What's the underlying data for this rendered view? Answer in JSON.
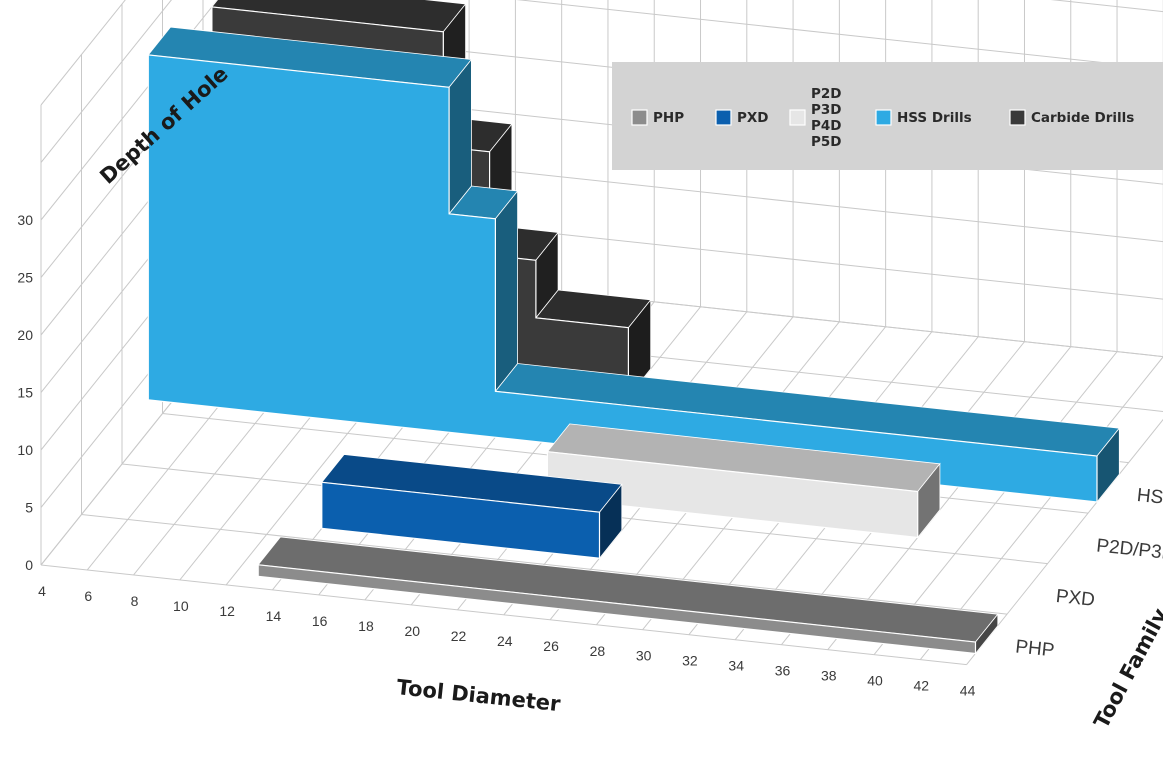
{
  "chart_data": {
    "type": "bar",
    "variant": "3d-stepped",
    "xlabel": "Tool Diameter",
    "ylabel": "Depth of Hole",
    "zlabel": "Tool Family",
    "x_ticks": [
      "4",
      "6",
      "8",
      "10",
      "12",
      "14",
      "16",
      "18",
      "20",
      "22",
      "24",
      "26",
      "28",
      "30",
      "32",
      "34",
      "36",
      "38",
      "40",
      "42",
      "44"
    ],
    "y_ticks": [
      "0",
      "5",
      "10",
      "15",
      "20",
      "25",
      "30"
    ],
    "ylim": [
      0,
      30
    ],
    "xlim": [
      4,
      44
    ],
    "families": [
      "PHP",
      "PXD",
      "P2D/P3D/P4D/P5D",
      "HSS Drills",
      "Carbide Drills"
    ],
    "legend": {
      "position": "top-right",
      "items": [
        {
          "label": "PHP",
          "color": "#8c8c8c"
        },
        {
          "label": "PXD",
          "color": "#0b5fae"
        },
        {
          "label_lines": [
            "P2D",
            "P3D",
            "P4D",
            "P5D"
          ],
          "color": "#e6e6e6"
        },
        {
          "label": "HSS Drills",
          "color": "#2eaae3"
        },
        {
          "label": "Carbide Drills",
          "color": "#3a3a3a"
        }
      ]
    },
    "series": [
      {
        "name": "PHP",
        "color": "#8c8c8c",
        "segments": [
          {
            "x0": 13,
            "x1": 44,
            "y": 1
          }
        ]
      },
      {
        "name": "PXD",
        "color": "#0b5fae",
        "segments": [
          {
            "x0": 14,
            "x1": 26,
            "y": 4
          }
        ]
      },
      {
        "name": "P2D/P3D/P4D/P5D",
        "color": "#e6e6e6",
        "segments": [
          {
            "x0": 22,
            "x1": 38,
            "y": 4
          }
        ]
      },
      {
        "name": "HSS Drills",
        "color": "#2eaae3",
        "segments": [
          {
            "x0": 3,
            "x1": 16,
            "y": 30
          },
          {
            "x0": 16,
            "x1": 18,
            "y": 19
          },
          {
            "x0": 18,
            "x1": 44,
            "y": 4
          }
        ]
      },
      {
        "name": "Carbide Drills",
        "color": "#3a3a3a",
        "segments": [
          {
            "x0": 4,
            "x1": 14,
            "y": 30
          },
          {
            "x0": 14,
            "x1": 16,
            "y": 20
          },
          {
            "x0": 16,
            "x1": 18,
            "y": 11
          },
          {
            "x0": 18,
            "x1": 22,
            "y": 6
          }
        ]
      }
    ]
  }
}
